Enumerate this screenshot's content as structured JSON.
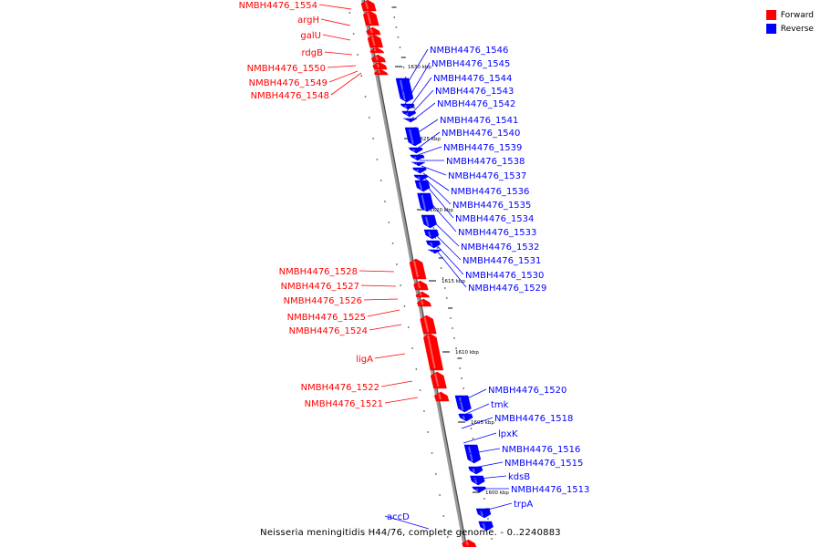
{
  "colors": {
    "forward": "#ff0000",
    "reverse": "#0000ff",
    "backbone": "#808080"
  },
  "legend": [
    {
      "label": "Forward",
      "color": "#ff0000"
    },
    {
      "label": "Reverse",
      "color": "#0000ff"
    }
  ],
  "caption": "Neisseria meningitidis H44/76, complete genome. - 0..2240883",
  "scale_labels": [
    "1630 kbp",
    "1625 kbp",
    "1620 kbp",
    "1615 kbp",
    "1610 kbp",
    "1605 kbp",
    "1600 kbp"
  ],
  "forward_labels": [
    "NMBH4476_1554",
    "argH",
    "galU",
    "rdgB",
    "NMBH4476_1550",
    "NMBH4476_1549",
    "NMBH4476_1548",
    "NMBH4476_1528",
    "NMBH4476_1527",
    "NMBH4476_1526",
    "NMBH4476_1525",
    "NMBH4476_1524",
    "ligA",
    "NMBH4476_1522",
    "NMBH4476_1521"
  ],
  "reverse_labels": [
    "NMBH4476_1546",
    "NMBH4476_1545",
    "NMBH4476_1544",
    "NMBH4476_1543",
    "NMBH4476_1542",
    "NMBH4476_1541",
    "NMBH4476_1540",
    "NMBH4476_1539",
    "NMBH4476_1538",
    "NMBH4476_1537",
    "NMBH4476_1536",
    "NMBH4476_1535",
    "NMBH4476_1534",
    "NMBH4476_1533",
    "NMBH4476_1532",
    "NMBH4476_1531",
    "NMBH4476_1530",
    "NMBH4476_1529",
    "NMBH4476_1520",
    "tmk",
    "NMBH4476_1518",
    "lpxK",
    "NMBH4476_1516",
    "NMBH4476_1515",
    "kdsB",
    "NMBH4476_1513",
    "trpA",
    "accD"
  ]
}
